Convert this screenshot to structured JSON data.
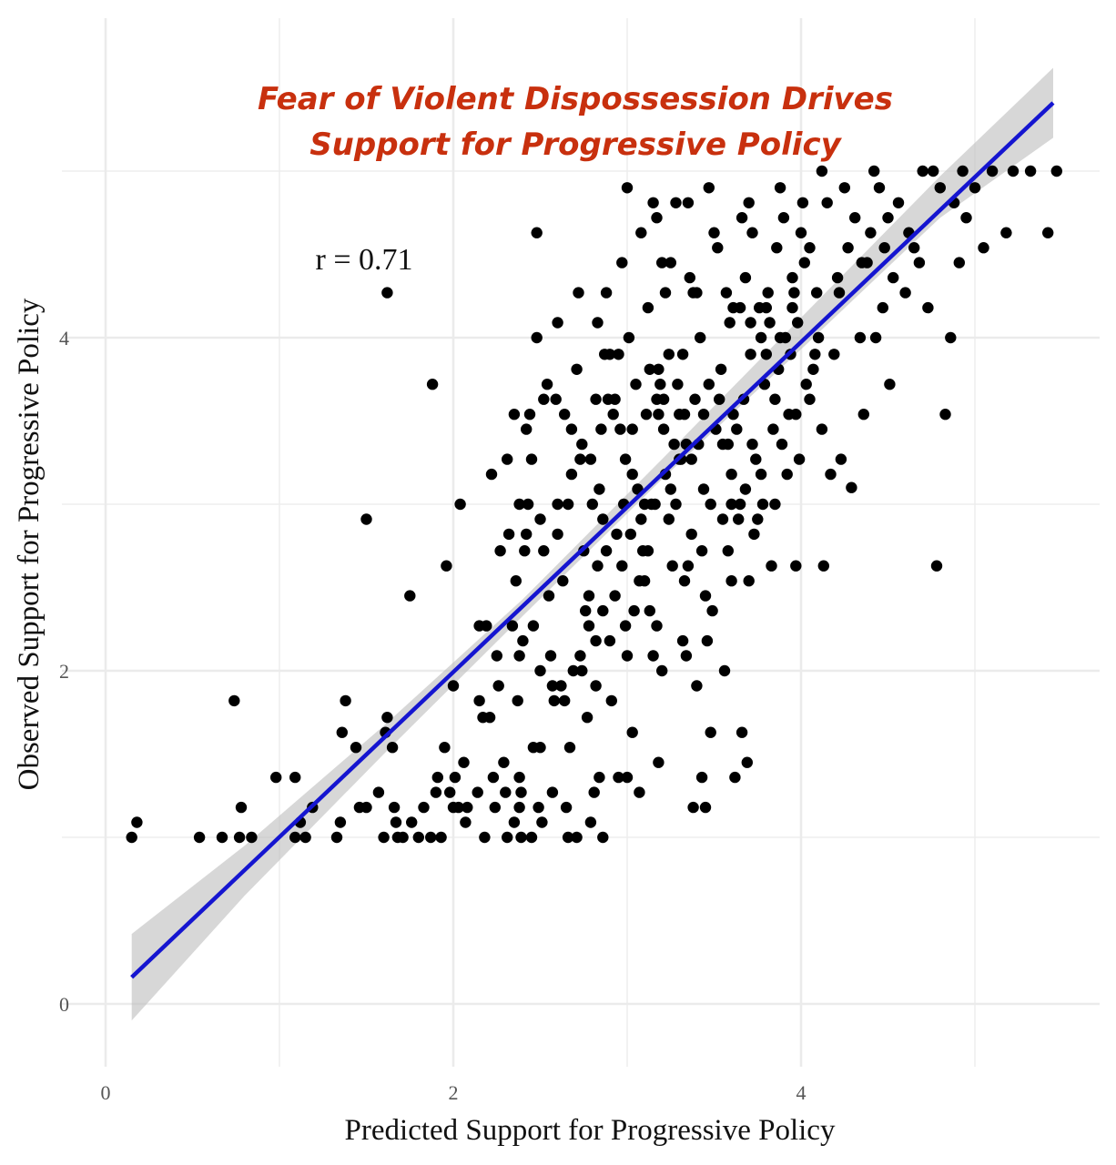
{
  "chart_data": {
    "type": "scatter",
    "title_lines": [
      "Fear of Violent Dispossession Drives",
      "Support for Progressive Policy"
    ],
    "xlabel": "Predicted Support for Progressive Policy",
    "ylabel": "Observed Support for Progressive Policy",
    "annotation": "r = 0.71",
    "xlim": [
      -0.1,
      5.6
    ],
    "ylim": [
      -0.4,
      5.6
    ],
    "x_ticks": [
      {
        "value": 0,
        "label": "0"
      },
      {
        "value": 2,
        "label": "2"
      },
      {
        "value": 4,
        "label": "4"
      }
    ],
    "y_ticks": [
      {
        "value": 0,
        "label": "0"
      },
      {
        "value": 2,
        "label": "2"
      },
      {
        "value": 4,
        "label": "4"
      }
    ],
    "grid_major_x": [
      0,
      2,
      4
    ],
    "grid_minor_x": [
      1,
      3,
      5
    ],
    "grid_major_y": [
      0,
      2,
      4
    ],
    "grid_minor_y": [
      1,
      3,
      5
    ],
    "grid": true,
    "colors": {
      "points": "#000000",
      "fit_line": "#1515d0",
      "ribbon": "#bdbdbd",
      "grid": "#ebebeb",
      "title": "#c8300e"
    },
    "fit": {
      "x": [
        0.15,
        5.45
      ],
      "y": [
        0.16,
        5.41
      ]
    },
    "ribbon": {
      "x": [
        0.15,
        0.8,
        1.6,
        2.4,
        3.2,
        4.0,
        4.8,
        5.45
      ],
      "upper": [
        0.42,
        0.95,
        1.67,
        2.43,
        3.27,
        4.12,
        4.97,
        5.62
      ],
      "lower": [
        -0.1,
        0.65,
        1.5,
        2.33,
        3.15,
        3.93,
        4.72,
        5.2
      ]
    },
    "points": [
      [
        0.15,
        1.0
      ],
      [
        0.18,
        1.09
      ],
      [
        0.54,
        1.0
      ],
      [
        0.67,
        1.0
      ],
      [
        0.74,
        1.82
      ],
      [
        0.77,
        1.0
      ],
      [
        0.78,
        1.18
      ],
      [
        0.84,
        1.0
      ],
      [
        0.98,
        1.36
      ],
      [
        1.09,
        1.0
      ],
      [
        1.09,
        1.36
      ],
      [
        1.12,
        1.09
      ],
      [
        1.15,
        1.0
      ],
      [
        1.19,
        1.18
      ],
      [
        1.33,
        1.0
      ],
      [
        1.35,
        1.09
      ],
      [
        1.36,
        1.63
      ],
      [
        1.38,
        1.82
      ],
      [
        1.44,
        1.54
      ],
      [
        1.46,
        1.18
      ],
      [
        1.5,
        2.91
      ],
      [
        1.5,
        1.18
      ],
      [
        1.57,
        1.27
      ],
      [
        1.6,
        1.0
      ],
      [
        1.61,
        1.63
      ],
      [
        1.62,
        1.72
      ],
      [
        1.62,
        4.27
      ],
      [
        1.65,
        1.54
      ],
      [
        1.66,
        1.18
      ],
      [
        1.67,
        1.09
      ],
      [
        1.68,
        1.0
      ],
      [
        1.71,
        1.0
      ],
      [
        1.75,
        2.45
      ],
      [
        1.76,
        1.09
      ],
      [
        1.8,
        1.0
      ],
      [
        1.83,
        1.18
      ],
      [
        1.87,
        1.0
      ],
      [
        1.88,
        3.72
      ],
      [
        1.9,
        1.27
      ],
      [
        1.91,
        1.36
      ],
      [
        1.93,
        1.0
      ],
      [
        1.95,
        1.54
      ],
      [
        1.96,
        2.63
      ],
      [
        1.98,
        1.27
      ],
      [
        2.0,
        1.18
      ],
      [
        2.0,
        1.91
      ],
      [
        2.01,
        1.36
      ],
      [
        2.03,
        1.18
      ],
      [
        2.04,
        3.0
      ],
      [
        2.06,
        1.45
      ],
      [
        2.07,
        1.09
      ],
      [
        2.08,
        1.18
      ],
      [
        2.14,
        1.27
      ],
      [
        2.15,
        1.82
      ],
      [
        2.17,
        1.72
      ],
      [
        2.18,
        1.0
      ],
      [
        2.19,
        2.27
      ],
      [
        2.21,
        1.72
      ],
      [
        2.22,
        3.18
      ],
      [
        2.23,
        1.36
      ],
      [
        2.24,
        1.18
      ],
      [
        2.26,
        1.91
      ],
      [
        2.29,
        1.45
      ],
      [
        2.3,
        1.27
      ],
      [
        2.31,
        1.0
      ],
      [
        2.31,
        3.27
      ],
      [
        2.32,
        2.82
      ],
      [
        2.34,
        2.27
      ],
      [
        2.35,
        1.09
      ],
      [
        2.37,
        1.82
      ],
      [
        2.38,
        1.18
      ],
      [
        2.38,
        2.09
      ],
      [
        2.38,
        1.36
      ],
      [
        2.38,
        3.0
      ],
      [
        2.39,
        1.27
      ],
      [
        2.39,
        1.0
      ],
      [
        2.4,
        2.18
      ],
      [
        2.41,
        2.72
      ],
      [
        2.42,
        3.45
      ],
      [
        2.43,
        3.0
      ],
      [
        2.44,
        3.54
      ],
      [
        2.45,
        1.0
      ],
      [
        2.46,
        1.54
      ],
      [
        2.48,
        4.0
      ],
      [
        2.48,
        4.63
      ],
      [
        2.49,
        1.18
      ],
      [
        2.5,
        2.91
      ],
      [
        2.5,
        1.54
      ],
      [
        2.51,
        1.09
      ],
      [
        2.52,
        2.72
      ],
      [
        2.54,
        3.72
      ],
      [
        2.57,
        1.91
      ],
      [
        2.58,
        1.82
      ],
      [
        2.59,
        3.63
      ],
      [
        2.6,
        4.09
      ],
      [
        2.6,
        3.0
      ],
      [
        2.62,
        1.91
      ],
      [
        2.63,
        2.54
      ],
      [
        2.64,
        3.54
      ],
      [
        2.65,
        1.18
      ],
      [
        2.66,
        1.0
      ],
      [
        2.67,
        1.54
      ],
      [
        2.68,
        3.45
      ],
      [
        2.69,
        2.0
      ],
      [
        2.71,
        1.0
      ],
      [
        2.72,
        4.27
      ],
      [
        2.73,
        3.27
      ],
      [
        2.74,
        3.36
      ],
      [
        2.74,
        2.0
      ],
      [
        2.76,
        2.36
      ],
      [
        2.77,
        1.72
      ],
      [
        2.78,
        2.45
      ],
      [
        2.78,
        2.27
      ],
      [
        2.79,
        1.09
      ],
      [
        2.8,
        3.0
      ],
      [
        2.81,
        1.27
      ],
      [
        2.82,
        3.63
      ],
      [
        2.82,
        1.91
      ],
      [
        2.83,
        4.09
      ],
      [
        2.83,
        2.63
      ],
      [
        2.84,
        3.09
      ],
      [
        2.84,
        1.36
      ],
      [
        2.86,
        1.0
      ],
      [
        2.86,
        2.91
      ],
      [
        2.87,
        3.9
      ],
      [
        2.88,
        2.72
      ],
      [
        2.9,
        2.18
      ],
      [
        2.9,
        3.9
      ],
      [
        2.92,
        3.54
      ],
      [
        2.93,
        3.63
      ],
      [
        2.94,
        2.82
      ],
      [
        2.95,
        1.36
      ],
      [
        2.96,
        3.45
      ],
      [
        2.97,
        4.45
      ],
      [
        2.98,
        3.0
      ],
      [
        2.99,
        3.27
      ],
      [
        3.0,
        2.09
      ],
      [
        3.0,
        1.36
      ],
      [
        3.01,
        4.0
      ],
      [
        3.02,
        2.82
      ],
      [
        3.03,
        3.18
      ],
      [
        3.04,
        2.36
      ],
      [
        3.06,
        3.09
      ],
      [
        3.07,
        1.27
      ],
      [
        3.08,
        4.63
      ],
      [
        3.09,
        2.72
      ],
      [
        3.1,
        3.0
      ],
      [
        3.11,
        3.54
      ],
      [
        3.12,
        2.72
      ],
      [
        3.13,
        2.36
      ],
      [
        3.13,
        3.81
      ],
      [
        3.14,
        3.0
      ],
      [
        3.16,
        3.0
      ],
      [
        3.17,
        2.27
      ],
      [
        3.17,
        3.63
      ],
      [
        3.18,
        3.54
      ],
      [
        3.18,
        3.81
      ],
      [
        3.19,
        3.72
      ],
      [
        3.2,
        2.0
      ],
      [
        3.21,
        3.45
      ],
      [
        3.21,
        3.63
      ],
      [
        3.22,
        4.27
      ],
      [
        3.24,
        2.91
      ],
      [
        3.24,
        3.9
      ],
      [
        3.25,
        3.09
      ],
      [
        3.27,
        3.36
      ],
      [
        3.28,
        3.0
      ],
      [
        3.28,
        4.81
      ],
      [
        3.29,
        3.72
      ],
      [
        3.3,
        3.54
      ],
      [
        3.31,
        3.27
      ],
      [
        3.32,
        3.9
      ],
      [
        3.33,
        2.54
      ],
      [
        3.33,
        3.54
      ],
      [
        3.34,
        3.36
      ],
      [
        3.34,
        2.09
      ],
      [
        3.35,
        2.63
      ],
      [
        3.37,
        3.27
      ],
      [
        3.37,
        2.82
      ],
      [
        3.38,
        4.27
      ],
      [
        3.38,
        1.18
      ],
      [
        3.39,
        3.63
      ],
      [
        3.4,
        4.27
      ],
      [
        3.41,
        3.36
      ],
      [
        3.43,
        2.72
      ],
      [
        3.43,
        1.36
      ],
      [
        3.44,
        3.54
      ],
      [
        3.45,
        1.18
      ],
      [
        3.46,
        2.18
      ],
      [
        3.47,
        3.72
      ],
      [
        3.48,
        3.0
      ],
      [
        3.49,
        2.36
      ],
      [
        3.5,
        4.63
      ],
      [
        3.51,
        3.45
      ],
      [
        3.53,
        3.63
      ],
      [
        3.54,
        3.81
      ],
      [
        3.56,
        2.0
      ],
      [
        3.57,
        4.27
      ],
      [
        3.58,
        3.36
      ],
      [
        3.59,
        4.09
      ],
      [
        3.6,
        3.18
      ],
      [
        3.6,
        3.0
      ],
      [
        3.61,
        3.54
      ],
      [
        3.62,
        1.36
      ],
      [
        3.63,
        3.45
      ],
      [
        3.64,
        2.91
      ],
      [
        3.65,
        4.18
      ],
      [
        3.66,
        4.72
      ],
      [
        3.67,
        3.63
      ],
      [
        3.68,
        3.09
      ],
      [
        3.69,
        1.45
      ],
      [
        3.7,
        4.81
      ],
      [
        3.71,
        3.9
      ],
      [
        3.71,
        4.09
      ],
      [
        3.72,
        3.36
      ],
      [
        3.73,
        2.82
      ],
      [
        3.74,
        3.27
      ],
      [
        3.76,
        4.18
      ],
      [
        3.77,
        4.0
      ],
      [
        3.78,
        3.0
      ],
      [
        3.79,
        3.72
      ],
      [
        3.8,
        3.9
      ],
      [
        3.81,
        4.27
      ],
      [
        3.82,
        4.09
      ],
      [
        3.83,
        2.63
      ],
      [
        3.84,
        3.45
      ],
      [
        3.85,
        3.0
      ],
      [
        3.86,
        4.54
      ],
      [
        3.87,
        3.81
      ],
      [
        3.88,
        4.0
      ],
      [
        3.89,
        3.36
      ],
      [
        3.9,
        4.72
      ],
      [
        3.91,
        4.0
      ],
      [
        3.93,
        3.54
      ],
      [
        3.94,
        3.9
      ],
      [
        3.95,
        4.36
      ],
      [
        3.96,
        4.27
      ],
      [
        3.97,
        2.63
      ],
      [
        3.98,
        4.09
      ],
      [
        3.99,
        3.27
      ],
      [
        4.0,
        4.63
      ],
      [
        4.02,
        4.45
      ],
      [
        4.03,
        3.72
      ],
      [
        4.05,
        4.54
      ],
      [
        4.07,
        3.81
      ],
      [
        4.08,
        3.9
      ],
      [
        4.09,
        4.27
      ],
      [
        4.1,
        4.0
      ],
      [
        4.12,
        3.45
      ],
      [
        4.13,
        2.63
      ],
      [
        4.15,
        4.81
      ],
      [
        4.17,
        3.18
      ],
      [
        4.19,
        3.9
      ],
      [
        4.21,
        4.36
      ],
      [
        4.23,
        3.27
      ],
      [
        4.25,
        4.9
      ],
      [
        4.27,
        4.54
      ],
      [
        4.29,
        3.1
      ],
      [
        4.31,
        4.72
      ],
      [
        4.34,
        4.0
      ],
      [
        4.36,
        3.54
      ],
      [
        4.38,
        4.45
      ],
      [
        4.4,
        4.63
      ],
      [
        4.43,
        4.0
      ],
      [
        4.45,
        4.9
      ],
      [
        4.48,
        4.54
      ],
      [
        4.51,
        3.72
      ],
      [
        4.53,
        4.36
      ],
      [
        4.56,
        4.81
      ],
      [
        4.6,
        4.27
      ],
      [
        4.65,
        4.54
      ],
      [
        4.68,
        4.45
      ],
      [
        4.7,
        5.0
      ],
      [
        4.73,
        4.18
      ],
      [
        4.76,
        5.0
      ],
      [
        4.78,
        2.63
      ],
      [
        4.8,
        4.9
      ],
      [
        4.83,
        3.54
      ],
      [
        4.86,
        4.0
      ],
      [
        4.88,
        4.81
      ],
      [
        4.91,
        4.45
      ],
      [
        4.93,
        5.0
      ],
      [
        4.95,
        4.72
      ],
      [
        5.0,
        4.9
      ],
      [
        5.05,
        4.54
      ],
      [
        5.1,
        5.0
      ],
      [
        5.18,
        4.63
      ],
      [
        5.22,
        5.0
      ],
      [
        5.32,
        5.0
      ],
      [
        5.42,
        4.63
      ],
      [
        5.47,
        5.0
      ],
      [
        3.3,
        3.27
      ],
      [
        2.97,
        2.63
      ],
      [
        3.08,
        2.91
      ],
      [
        2.85,
        3.45
      ],
      [
        2.68,
        3.18
      ],
      [
        2.95,
        3.9
      ],
      [
        2.75,
        2.72
      ],
      [
        2.6,
        2.82
      ],
      [
        3.42,
        4.0
      ],
      [
        3.55,
        3.36
      ],
      [
        3.65,
        3.0
      ],
      [
        3.15,
        2.09
      ],
      [
        2.99,
        2.27
      ],
      [
        2.82,
        2.18
      ],
      [
        2.71,
        3.81
      ],
      [
        3.05,
        3.72
      ],
      [
        3.22,
        3.18
      ],
      [
        3.44,
        3.09
      ],
      [
        3.6,
        2.54
      ],
      [
        3.75,
        2.91
      ],
      [
        3.85,
        3.63
      ],
      [
        2.55,
        2.45
      ],
      [
        2.45,
        3.27
      ],
      [
        2.25,
        2.09
      ],
      [
        2.15,
        2.27
      ],
      [
        3.12,
        4.18
      ],
      [
        3.25,
        4.45
      ],
      [
        3.36,
        4.36
      ],
      [
        3.52,
        4.54
      ],
      [
        3.68,
        4.36
      ],
      [
        3.8,
        4.18
      ],
      [
        3.95,
        4.18
      ],
      [
        4.05,
        3.63
      ],
      [
        2.91,
        1.82
      ],
      [
        3.03,
        1.63
      ],
      [
        3.18,
        1.45
      ],
      [
        3.4,
        1.91
      ],
      [
        3.48,
        1.63
      ],
      [
        3.66,
        1.63
      ],
      [
        2.57,
        1.27
      ],
      [
        2.64,
        1.82
      ],
      [
        2.5,
        2.0
      ],
      [
        2.93,
        2.45
      ],
      [
        3.1,
        2.54
      ],
      [
        3.32,
        2.18
      ],
      [
        3.58,
        2.72
      ],
      [
        3.72,
        4.63
      ],
      [
        3.88,
        4.9
      ],
      [
        3.47,
        4.9
      ],
      [
        3.35,
        4.81
      ],
      [
        3.15,
        4.81
      ],
      [
        3.2,
        4.45
      ],
      [
        3.61,
        4.18
      ],
      [
        3.92,
        3.18
      ],
      [
        4.22,
        4.27
      ],
      [
        4.35,
        4.45
      ],
      [
        4.5,
        4.72
      ],
      [
        4.62,
        4.63
      ],
      [
        4.12,
        5.0
      ],
      [
        4.42,
        5.0
      ],
      [
        4.01,
        4.81
      ],
      [
        4.47,
        4.18
      ],
      [
        2.88,
        4.27
      ],
      [
        3.0,
        4.9
      ],
      [
        3.17,
        4.72
      ],
      [
        3.03,
        3.45
      ],
      [
        2.89,
        3.63
      ],
      [
        2.79,
        3.27
      ],
      [
        2.66,
        3.0
      ],
      [
        2.52,
        3.63
      ],
      [
        2.35,
        3.54
      ],
      [
        2.46,
        2.27
      ],
      [
        2.56,
        2.09
      ],
      [
        2.73,
        2.09
      ],
      [
        2.86,
        2.36
      ],
      [
        3.07,
        2.54
      ],
      [
        3.26,
        2.63
      ],
      [
        3.45,
        2.45
      ],
      [
        3.55,
        2.91
      ],
      [
        3.7,
        2.54
      ],
      [
        3.77,
        3.18
      ],
      [
        3.97,
        3.54
      ],
      [
        2.42,
        2.82
      ],
      [
        2.27,
        2.72
      ],
      [
        2.36,
        2.54
      ]
    ]
  }
}
